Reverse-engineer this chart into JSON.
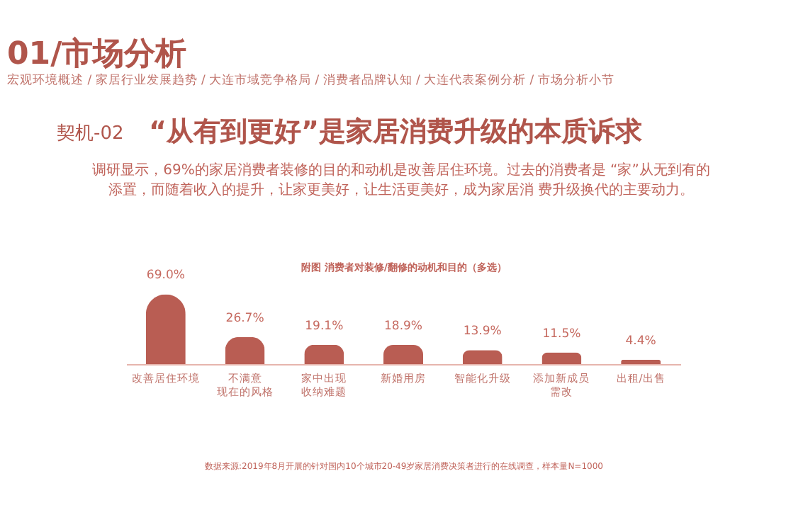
{
  "chart_data": {
    "type": "bar",
    "title": "附图 消费者对装修/翻修的动机和目的（多选）",
    "annotations": [
      "01/市场分析",
      "宏观环境概述 / 家居行业发展趋势 / 大连市域竞争格局 / 消费者品牌认知 / 大连代表案例分析 / 市场分析小节",
      "契机-02",
      "“从有到更好”是家居消费升级的本质诉求",
      "调研显示，69%的家居消费者装修的目的和动机是改善居住环境。过去的消费者是 “家”从无到有的",
      "添置，而随着收入的提升，让家更美好，让生活更美好，成为家居消 费升级换代的主要动力。",
      "数据来源:2019年8月开展的针对国内10个城市20-49岁家居消费决策者进行的在线调查，样本量N=1000"
    ],
    "categories": [
      "改善居住环境",
      "不满意现在的风格",
      "家中出现收纳难题",
      "新婚用房",
      "智能化升级",
      "添加新成员需改",
      "出租/出售"
    ],
    "values": [
      69.0,
      26.7,
      19.1,
      18.9,
      13.9,
      11.5,
      4.4
    ],
    "color": "#b95d53",
    "value_labels": [
      "69.0%",
      "26.7%",
      "19.1%",
      "18.9%",
      "13.9%",
      "11.5%",
      "4.4%"
    ],
    "grid": false,
    "tick_labels": "x"
  }
}
